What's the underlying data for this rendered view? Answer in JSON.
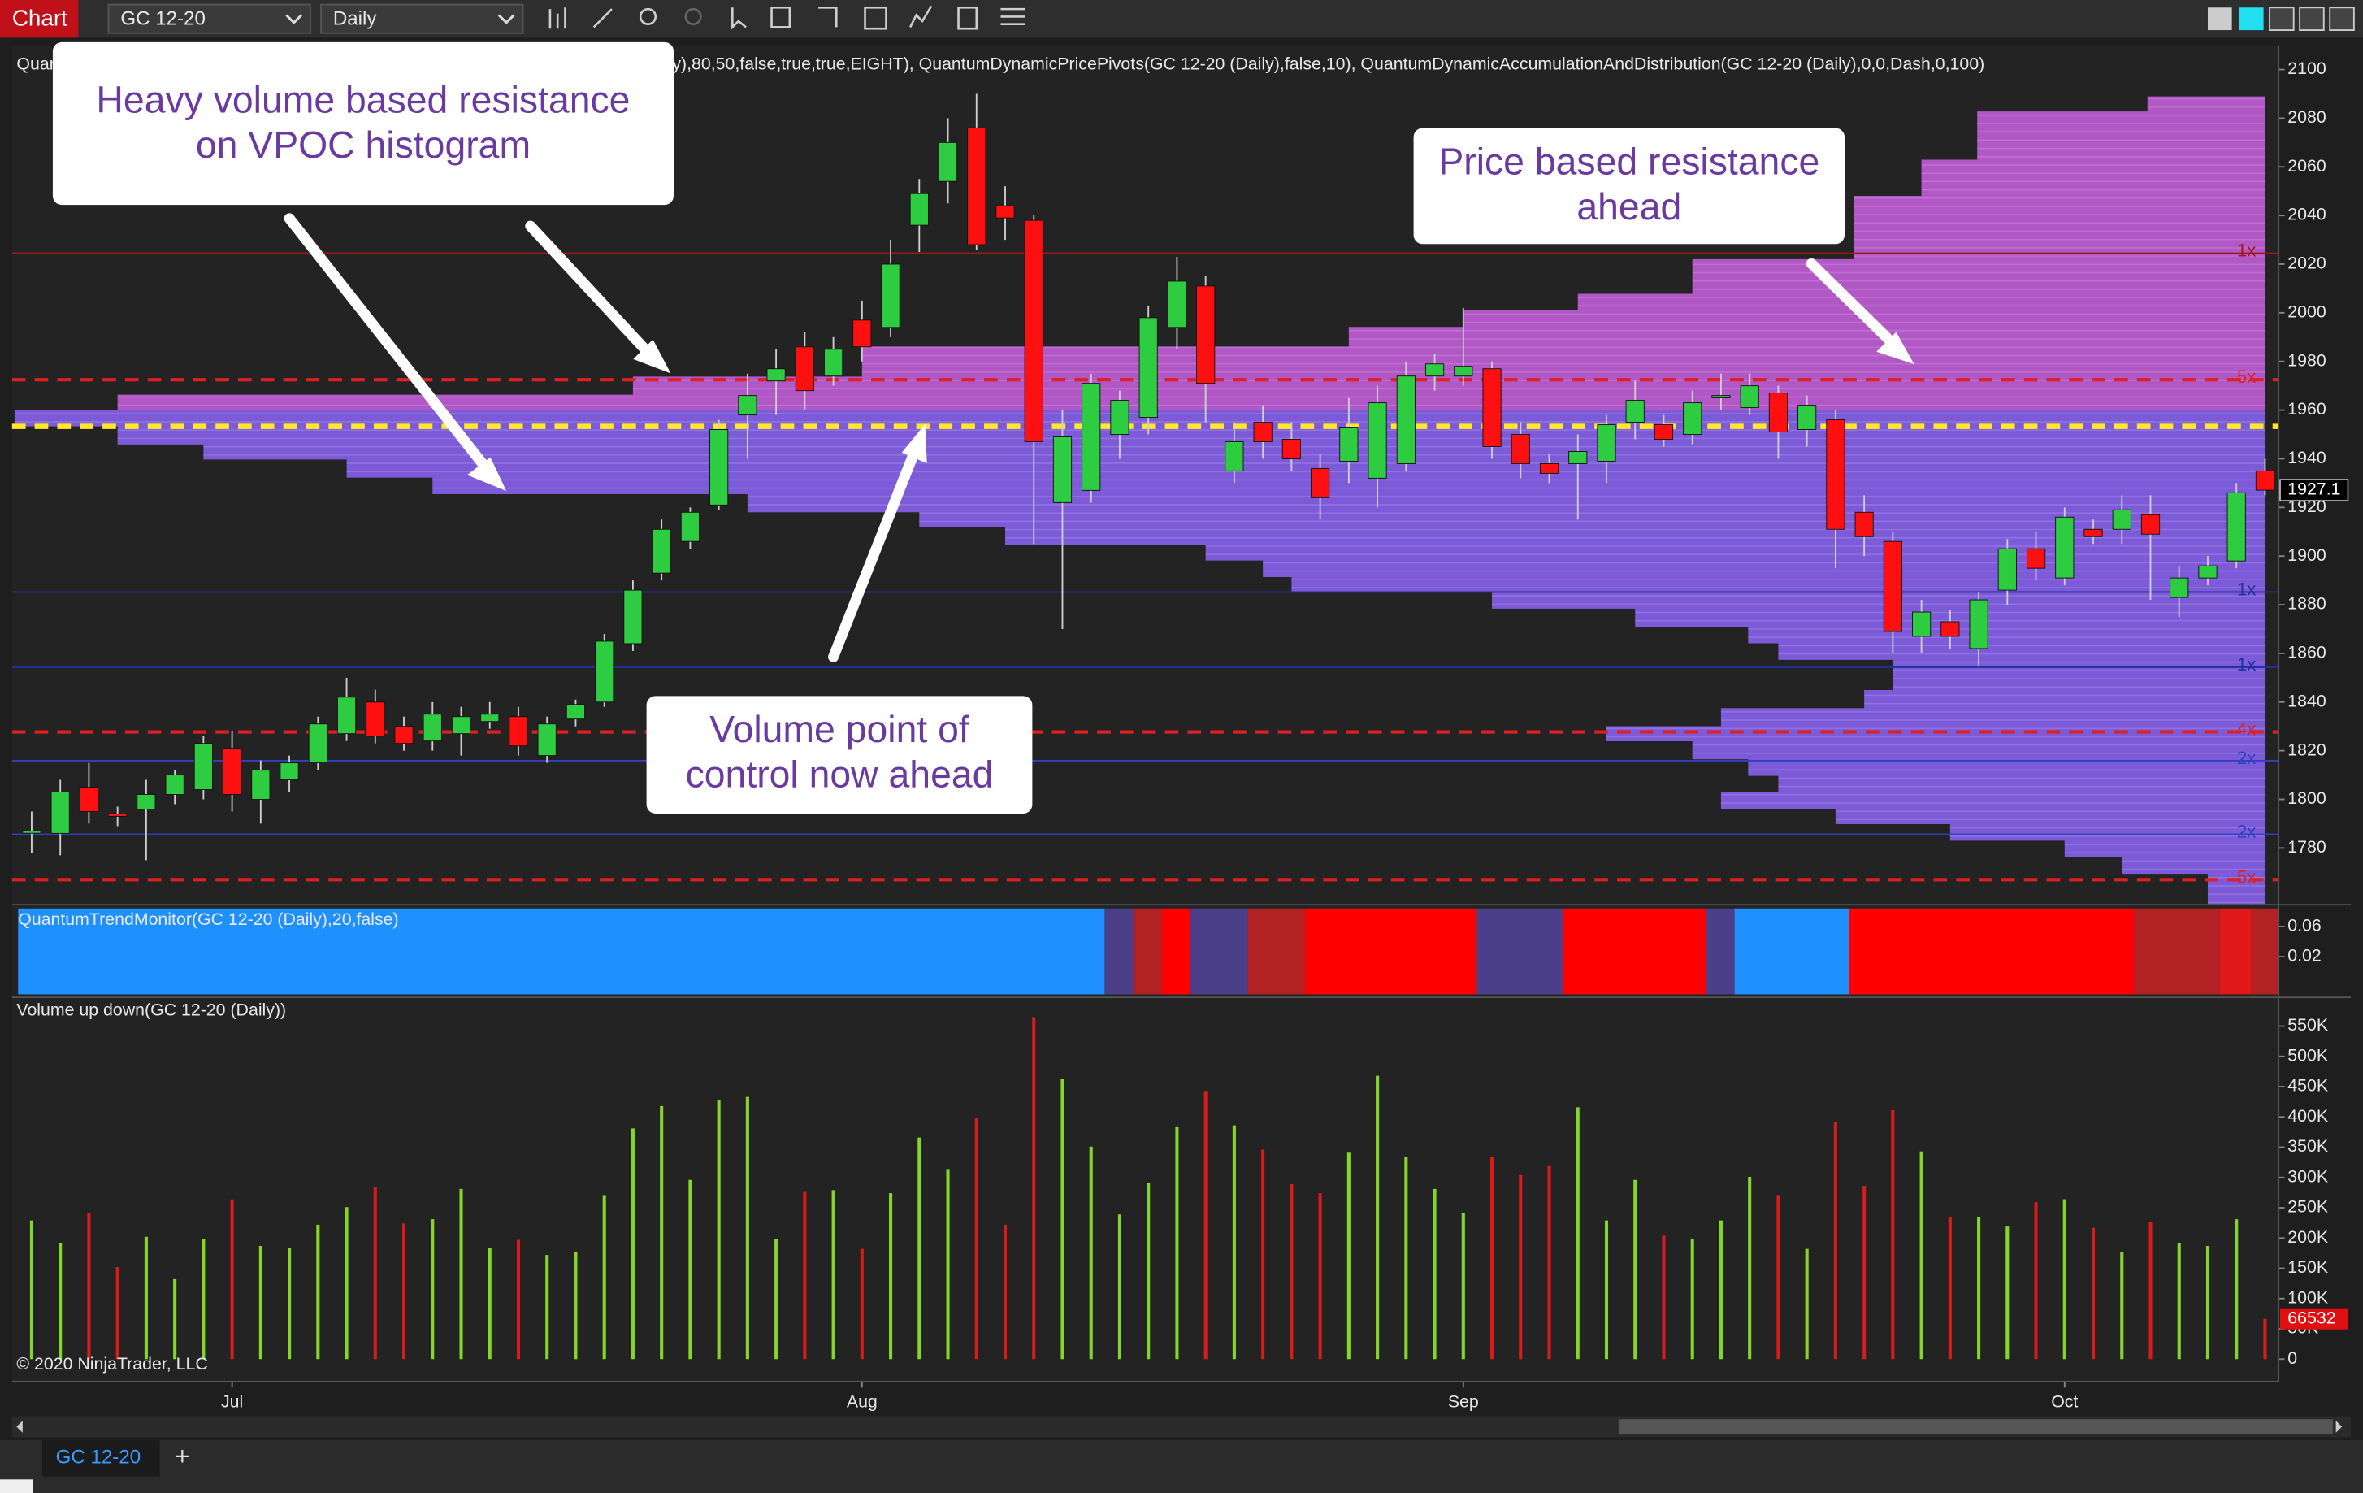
{
  "toolbar": {
    "tab": "Chart",
    "instrument": "GC 12-20",
    "interval": "Daily"
  },
  "chart_data": [
    {
      "type": "candlestick",
      "title": "Quan",
      "subtitle": "ily),80,50,false,true,true,EIGHT), QuantumDynamicPricePivots(GC 12-20 (Daily),false,10), QuantumDynamicAccumulationAndDistribution(GC 12-20 (Daily),0,0,Dash,0,100)",
      "categories": [
        null,
        null,
        null,
        null,
        null,
        null,
        null,
        "Jul",
        null,
        null,
        null,
        null,
        null,
        null,
        null,
        null,
        null,
        null,
        null,
        null,
        null,
        null,
        null,
        null,
        null,
        null,
        null,
        null,
        null,
        "Aug",
        null,
        null,
        null,
        null,
        null,
        null,
        null,
        null,
        null,
        null,
        null,
        null,
        null,
        null,
        null,
        null,
        null,
        null,
        null,
        null,
        "Sep",
        null,
        null,
        null,
        null,
        null,
        null,
        null,
        null,
        null,
        null,
        null,
        null,
        null,
        null,
        null,
        null,
        null,
        null,
        null,
        null,
        "Oct",
        null,
        null,
        null,
        null,
        null,
        null,
        null
      ],
      "open": [
        1787,
        1786,
        1805,
        1794,
        1796,
        1802,
        1804,
        1821,
        1800,
        1808,
        1815,
        1827,
        1840,
        1830,
        1824,
        1827,
        1832,
        1834,
        1818,
        1833,
        1840,
        1864,
        1893,
        1906,
        1921,
        1958,
        1972,
        1986,
        1974,
        1997,
        1994,
        2036,
        2054,
        2076,
        2044,
        2038,
        1922,
        1927,
        1950,
        1957,
        1994,
        2011,
        1935,
        1955,
        1948,
        1936,
        1939,
        1932,
        1938,
        1974,
        1974,
        1977,
        1950,
        1938,
        1938,
        1939,
        1955,
        1954,
        1950,
        1966,
        1961,
        1967,
        1952,
        1956,
        1918,
        1906,
        1867,
        1873,
        1862,
        1886,
        1903,
        1891,
        1911,
        1911,
        1917,
        1883,
        1891,
        1898,
        1935
      ],
      "high": [
        1795,
        1808,
        1815,
        1797,
        1808,
        1812,
        1826,
        1828,
        1816,
        1818,
        1834,
        1850,
        1845,
        1834,
        1840,
        1838,
        1840,
        1838,
        1834,
        1841,
        1868,
        1890,
        1915,
        1920,
        1956,
        1975,
        1985,
        1992,
        1990,
        2005,
        2030,
        2055,
        2080,
        2090,
        2052,
        2040,
        1960,
        1975,
        1968,
        2003,
        2023,
        2015,
        1955,
        1962,
        1955,
        1942,
        1965,
        1970,
        1980,
        1983,
        2002,
        1980,
        1955,
        1942,
        1950,
        1958,
        1972,
        1958,
        1968,
        1975,
        1975,
        1970,
        1966,
        1960,
        1925,
        1910,
        1882,
        1878,
        1885,
        1907,
        1910,
        1920,
        1915,
        1925,
        1925,
        1896,
        1900,
        1930,
        1940
      ],
      "low": [
        1778,
        1777,
        1790,
        1789,
        1775,
        1798,
        1800,
        1795,
        1790,
        1803,
        1812,
        1824,
        1823,
        1820,
        1820,
        1818,
        1829,
        1818,
        1815,
        1830,
        1838,
        1861,
        1890,
        1903,
        1919,
        1940,
        1958,
        1960,
        1970,
        1980,
        1990,
        2025,
        2045,
        2026,
        2030,
        1905,
        1870,
        1922,
        1940,
        1950,
        1985,
        1955,
        1930,
        1940,
        1935,
        1915,
        1930,
        1920,
        1935,
        1968,
        1970,
        1940,
        1932,
        1930,
        1915,
        1930,
        1948,
        1945,
        1946,
        1960,
        1958,
        1940,
        1945,
        1895,
        1900,
        1860,
        1860,
        1862,
        1855,
        1880,
        1890,
        1888,
        1905,
        1905,
        1882,
        1875,
        1888,
        1895,
        1925
      ],
      "close": [
        1787,
        1803,
        1795,
        1793,
        1802,
        1810,
        1823,
        1802,
        1812,
        1815,
        1831,
        1842,
        1826,
        1823,
        1835,
        1834,
        1835,
        1822,
        1831,
        1839,
        1865,
        1886,
        1911,
        1918,
        1952,
        1966,
        1977,
        1968,
        1985,
        1986,
        2020,
        2049,
        2070,
        2028,
        2039,
        1947,
        1949,
        1971,
        1964,
        1998,
        2013,
        1971,
        1947,
        1947,
        1940,
        1924,
        1953,
        1963,
        1974,
        1979,
        1978,
        1945,
        1938,
        1934,
        1943,
        1954,
        1964,
        1948,
        1963,
        1966,
        1970,
        1951,
        1962,
        1911,
        1908,
        1869,
        1877,
        1867,
        1882,
        1903,
        1895,
        1916,
        1908,
        1919,
        1909,
        1891,
        1896,
        1926,
        1927.1
      ],
      "up_color": "#2ecc40",
      "down_color": "#ff1010",
      "ylim": [
        1757,
        2110
      ],
      "yticks": [
        1780,
        1800,
        1820,
        1840,
        1860,
        1880,
        1900,
        1920,
        1940,
        1960,
        1980,
        2000,
        2020,
        2040,
        2060,
        2080,
        2100
      ],
      "levels": [
        {
          "value": 2024.5,
          "color": "#a01818",
          "dashed": false,
          "label": "1x"
        },
        {
          "value": 1972.5,
          "color": "#e02020",
          "dashed": true,
          "label": "5x"
        },
        {
          "value": 1953.3,
          "color": "#ffe926",
          "dashed": true
        },
        {
          "value": 1885.2,
          "color": "#2030a0",
          "dashed": false,
          "label": "1x"
        },
        {
          "value": 1854.3,
          "color": "#2030a0",
          "dashed": false,
          "label": "1x"
        },
        {
          "value": 1827.7,
          "color": "#e02020",
          "dashed": true,
          "label": "4x"
        },
        {
          "value": 1815.9,
          "color": "#3040c0",
          "dashed": false,
          "label": "2x"
        },
        {
          "value": 1785.6,
          "color": "#3040c0",
          "dashed": false,
          "label": "2x"
        },
        {
          "value": 1767,
          "color": "#e02020",
          "dashed": true,
          "label": "5x"
        }
      ]
    },
    {
      "type": "bar",
      "title": "Volume up down(GC 12-20 (Daily))",
      "values": [
        229000,
        192000,
        241000,
        152000,
        202000,
        132000,
        199000,
        264000,
        187000,
        184000,
        222000,
        251000,
        284000,
        224000,
        231000,
        281000,
        184000,
        197000,
        172000,
        177000,
        271000,
        381000,
        418000,
        296000,
        428000,
        433000,
        199000,
        276000,
        279000,
        182000,
        274000,
        366000,
        314000,
        398000,
        222000,
        565000,
        463000,
        351000,
        239000,
        291000,
        383000,
        443000,
        386000,
        346000,
        289000,
        274000,
        341000,
        468000,
        334000,
        281000,
        241000,
        334000,
        304000,
        319000,
        416000,
        229000,
        296000,
        204000,
        199000,
        229000,
        301000,
        271000,
        182000,
        391000,
        286000,
        411000,
        343000,
        234000,
        234000,
        219000,
        259000,
        264000,
        217000,
        177000,
        226000,
        192000,
        187000,
        231000,
        66532
      ],
      "up_color": "#86d62a",
      "down_color": "#d81c1c",
      "ylim": [
        -37000,
        590000
      ],
      "yticks": [
        0,
        {
          "value": 50000,
          "label": "50K"
        },
        {
          "value": 100000,
          "label": "100K"
        },
        {
          "value": 150000,
          "label": "150K"
        },
        {
          "value": 200000,
          "label": "200K"
        },
        {
          "value": 250000,
          "label": "250K"
        },
        {
          "value": 300000,
          "label": "300K"
        },
        {
          "value": 350000,
          "label": "350K"
        },
        {
          "value": 400000,
          "label": "400K"
        },
        {
          "value": 450000,
          "label": "450K"
        },
        {
          "value": 500000,
          "label": "500K"
        },
        {
          "value": 550000,
          "label": "550K"
        }
      ]
    }
  ],
  "trend_monitor": {
    "title": "QuantumTrendMonitor(GC 12-20 (Daily),20,false)",
    "ylim": [
      -0.03,
      0.084
    ],
    "yticks": [
      0.06,
      0.02
    ]
  },
  "copyright": "© 2020 NinjaTrader, LLC",
  "annotations": [
    {
      "lines": [
        "Heavy volume based resistance",
        "on VPOC histogram"
      ]
    },
    {
      "lines": [
        "Price based resistance",
        "ahead"
      ]
    },
    {
      "lines": [
        "Volume point of",
        "control now ahead"
      ]
    }
  ],
  "tabs": {
    "active": "GC 12-20",
    "add": "+"
  }
}
